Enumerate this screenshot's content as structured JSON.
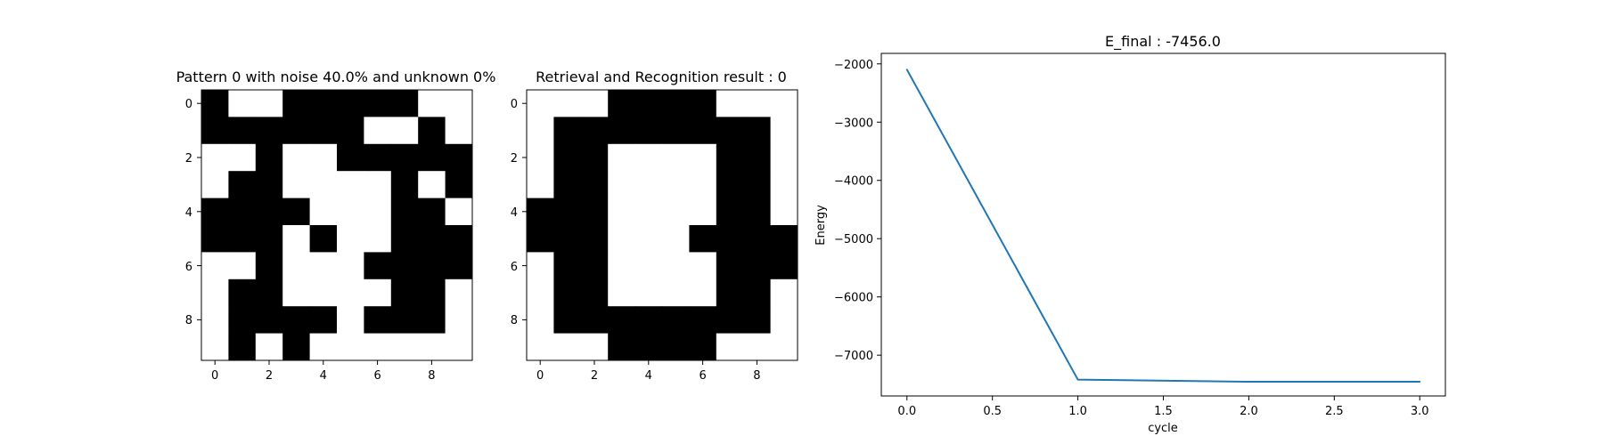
{
  "chart_data": [
    {
      "type": "heatmap",
      "title": "Pattern 0 with noise 40.0% and unknown 0%",
      "colormap": [
        "#ffffff",
        "#000000"
      ],
      "x_ticks": [
        "0",
        "2",
        "4",
        "6",
        "8"
      ],
      "y_ticks": [
        "0",
        "2",
        "4",
        "6",
        "8"
      ],
      "grid": false,
      "matrix": [
        [
          1,
          0,
          0,
          1,
          1,
          1,
          1,
          1,
          0,
          0
        ],
        [
          1,
          1,
          1,
          1,
          1,
          1,
          0,
          0,
          1,
          0
        ],
        [
          0,
          0,
          1,
          0,
          0,
          1,
          1,
          1,
          1,
          1
        ],
        [
          0,
          1,
          1,
          0,
          0,
          0,
          0,
          1,
          0,
          1
        ],
        [
          1,
          1,
          1,
          1,
          0,
          0,
          0,
          1,
          1,
          0
        ],
        [
          1,
          1,
          1,
          0,
          1,
          0,
          0,
          1,
          1,
          1
        ],
        [
          0,
          0,
          1,
          0,
          0,
          0,
          1,
          1,
          1,
          1
        ],
        [
          0,
          1,
          1,
          0,
          0,
          0,
          0,
          1,
          1,
          0
        ],
        [
          0,
          1,
          1,
          1,
          1,
          0,
          1,
          1,
          1,
          0
        ],
        [
          0,
          1,
          0,
          1,
          0,
          0,
          0,
          0,
          0,
          0
        ]
      ]
    },
    {
      "type": "heatmap",
      "title": "Retrieval and Recognition result : 0",
      "colormap": [
        "#ffffff",
        "#000000"
      ],
      "x_ticks": [
        "0",
        "2",
        "4",
        "6",
        "8"
      ],
      "y_ticks": [
        "0",
        "2",
        "4",
        "6",
        "8"
      ],
      "grid": false,
      "matrix": [
        [
          0,
          0,
          0,
          1,
          1,
          1,
          1,
          0,
          0,
          0
        ],
        [
          0,
          1,
          1,
          1,
          1,
          1,
          1,
          1,
          1,
          0
        ],
        [
          0,
          1,
          1,
          0,
          0,
          0,
          0,
          1,
          1,
          0
        ],
        [
          0,
          1,
          1,
          0,
          0,
          0,
          0,
          1,
          1,
          0
        ],
        [
          1,
          1,
          1,
          0,
          0,
          0,
          0,
          1,
          1,
          0
        ],
        [
          1,
          1,
          1,
          0,
          0,
          0,
          1,
          1,
          1,
          1
        ],
        [
          0,
          1,
          1,
          0,
          0,
          0,
          0,
          1,
          1,
          1
        ],
        [
          0,
          1,
          1,
          0,
          0,
          0,
          0,
          1,
          1,
          0
        ],
        [
          0,
          1,
          1,
          1,
          1,
          1,
          1,
          1,
          1,
          0
        ],
        [
          0,
          0,
          0,
          1,
          1,
          1,
          1,
          0,
          0,
          0
        ]
      ]
    },
    {
      "type": "line",
      "title": "E_final : -7456.0",
      "xlabel": "cycle",
      "ylabel": "Energy",
      "x_ticks": [
        "0.0",
        "0.5",
        "1.0",
        "1.5",
        "2.0",
        "2.5",
        "3.0"
      ],
      "y_ticks": [
        "−2000",
        "−3000",
        "−4000",
        "−5000",
        "−6000",
        "−7000"
      ],
      "xlim": [
        -0.15,
        3.15
      ],
      "ylim": [
        -7700,
        -1820
      ],
      "grid": false,
      "series": [
        {
          "color": "#1f77b4",
          "x": [
            0,
            1,
            2,
            3
          ],
          "y": [
            -2100,
            -7420,
            -7456,
            -7456
          ]
        }
      ]
    }
  ]
}
